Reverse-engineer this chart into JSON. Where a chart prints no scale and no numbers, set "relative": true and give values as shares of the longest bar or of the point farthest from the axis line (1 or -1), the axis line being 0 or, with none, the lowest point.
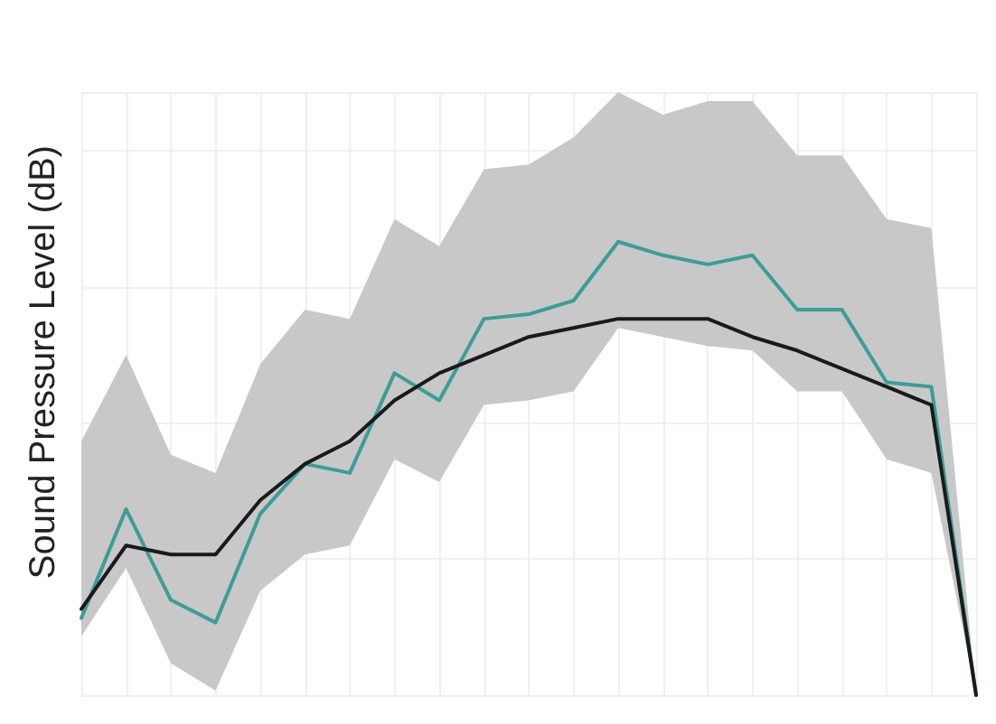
{
  "chart_data": {
    "type": "line",
    "ylabel": "Sound Pressure Level (dB)",
    "relative": true,
    "grid": true,
    "marker": "none",
    "line_style": "solid",
    "categories": [
      null,
      null,
      null,
      null,
      null,
      null,
      null,
      null,
      null,
      null,
      null,
      null,
      null,
      null,
      null,
      null,
      null,
      null,
      null,
      null,
      null
    ],
    "series": [
      {
        "color": "#3a9e96",
        "values": [
          0.17,
          0.41,
          0.21,
          0.16,
          0.4,
          0.51,
          0.49,
          0.71,
          0.65,
          0.83,
          0.84,
          0.87,
          1,
          0.97,
          0.95,
          0.97,
          0.85,
          0.85,
          0.69,
          0.68,
          0
        ],
        "lower": [
          0.13,
          0.28,
          0.07,
          0.01,
          0.23,
          0.31,
          0.33,
          0.52,
          0.47,
          0.64,
          0.65,
          0.67,
          0.81,
          0.79,
          0.77,
          0.76,
          0.67,
          0.67,
          0.52,
          0.49,
          0
        ],
        "upper": [
          0.56,
          0.75,
          0.53,
          0.49,
          0.73,
          0.85,
          0.83,
          1.05,
          0.99,
          1.16,
          1.17,
          1.23,
          1.33,
          1.28,
          1.31,
          1.31,
          1.19,
          1.19,
          1.05,
          1.03,
          0
        ]
      },
      {
        "color": "#1a1a1a",
        "values": [
          0.19,
          0.33,
          0.31,
          0.31,
          0.43,
          0.51,
          0.56,
          0.65,
          0.71,
          0.75,
          0.79,
          0.81,
          0.83,
          0.83,
          0.83,
          0.79,
          0.76,
          0.72,
          0.68,
          0.64,
          0
        ]
      }
    ]
  }
}
